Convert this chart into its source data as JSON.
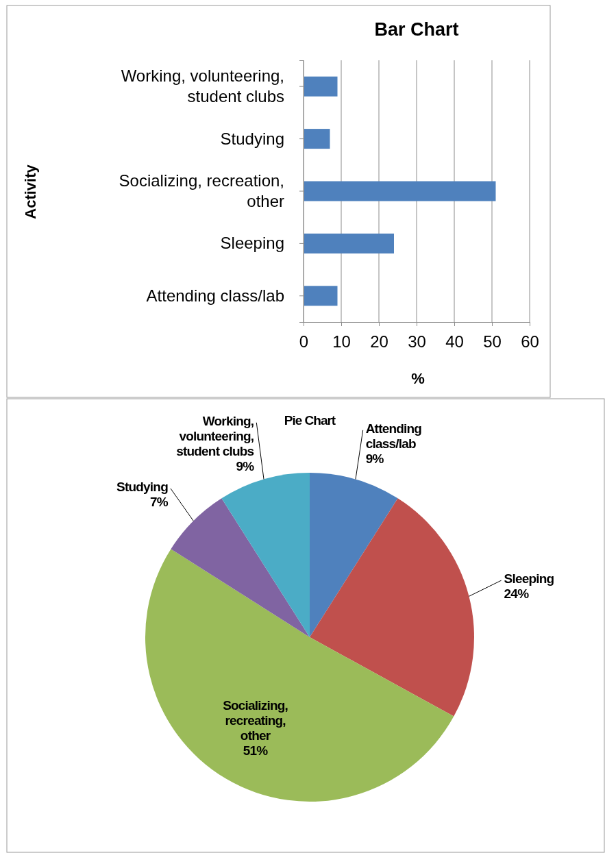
{
  "chart_data": [
    {
      "type": "bar",
      "title": "Bar Chart",
      "orientation": "horizontal",
      "xlabel": "%",
      "ylabel": "Activity",
      "categories": [
        "Working, volunteering, student clubs",
        "Studying",
        "Socializing, recreation, other",
        "Sleeping",
        "Attending class/lab"
      ],
      "values": [
        9,
        7,
        51,
        24,
        9
      ],
      "color": "#4f81bd",
      "xlim": [
        0,
        60
      ],
      "xticks": [
        0,
        10,
        20,
        30,
        40,
        50,
        60
      ],
      "grid": "x"
    },
    {
      "type": "pie",
      "title": "Pie Chart",
      "categories": [
        "Attending class/lab",
        "Sleeping",
        "Socializing, recreating, other",
        "Studying",
        "Working, volunteering, student clubs"
      ],
      "values": [
        9,
        24,
        51,
        7,
        9
      ],
      "colors": [
        "#4f81bd",
        "#c0504d",
        "#9bbb59",
        "#8064a2",
        "#4bacc6"
      ],
      "value_labels": [
        "9%",
        "24%",
        "51%",
        "7%",
        "9%"
      ]
    }
  ]
}
